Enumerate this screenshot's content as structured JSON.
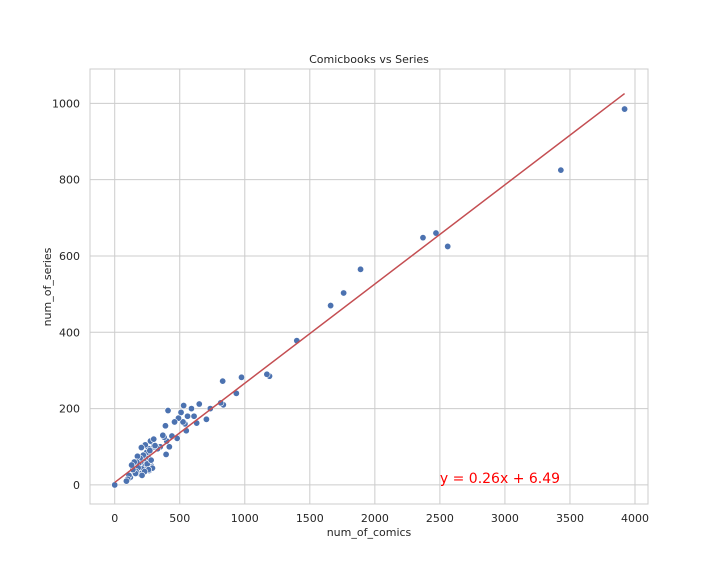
{
  "chart_data": {
    "type": "scatter",
    "title": "Comicbooks vs Series",
    "xlabel": "num_of_comics",
    "ylabel": "num_of_series",
    "xlim": [
      -190,
      4100
    ],
    "ylim": [
      -50,
      1090
    ],
    "xticks": [
      0,
      500,
      1000,
      1500,
      2000,
      2500,
      3000,
      3500,
      4000
    ],
    "yticks": [
      0,
      200,
      400,
      600,
      800,
      1000
    ],
    "xtick_labels": [
      "0",
      "500",
      "1000",
      "1500",
      "2000",
      "2500",
      "3000",
      "3500",
      "4000"
    ],
    "ytick_labels": [
      "0",
      "200",
      "400",
      "600",
      "800",
      "1000"
    ],
    "grid": true,
    "colors": {
      "points": "#4c72b0",
      "point_edge": "#ffffff",
      "line": "#c44e52",
      "annotation": "#ff0000",
      "grid": "#cccccc",
      "spine": "#cccccc"
    },
    "series": [
      {
        "x": [
          0,
          3920,
          3430,
          2560,
          2470,
          2370,
          1890,
          1760,
          1660,
          1400,
          1190,
          1170,
          975,
          935,
          835,
          830,
          815,
          735,
          705,
          650,
          630,
          610,
          590,
          560,
          550,
          540,
          530,
          525,
          510,
          490,
          480,
          460,
          440,
          420,
          410,
          400,
          395,
          390,
          380,
          370,
          350,
          330,
          300,
          290,
          280,
          275,
          270,
          265,
          260,
          255,
          250,
          245,
          240,
          235,
          230,
          225,
          220,
          215,
          210,
          205,
          200,
          195,
          190,
          185,
          180,
          175,
          170,
          165,
          160,
          150,
          140,
          130,
          120,
          110,
          100,
          90,
          300,
          290,
          310,
          270,
          250,
          280,
          260,
          230,
          210
        ],
        "y": [
          0,
          985,
          825,
          625,
          660,
          648,
          565,
          503,
          470,
          378,
          285,
          290,
          282,
          240,
          210,
          272,
          215,
          200,
          172,
          212,
          162,
          180,
          200,
          180,
          142,
          160,
          208,
          165,
          190,
          175,
          122,
          165,
          128,
          100,
          195,
          115,
          80,
          155,
          125,
          130,
          100,
          95,
          100,
          112,
          50,
          115,
          48,
          38,
          95,
          75,
          60,
          85,
          70,
          105,
          50,
          62,
          78,
          55,
          42,
          98,
          60,
          70,
          30,
          56,
          45,
          75,
          60,
          35,
          30,
          60,
          40,
          52,
          20,
          25,
          15,
          10,
          120,
          44,
          103,
          90,
          55,
          65,
          40,
          35,
          25
        ]
      }
    ],
    "fit_line": {
      "slope": 0.26,
      "intercept": 6.49,
      "x_range": [
        0,
        3920
      ]
    },
    "annotation": {
      "text": "y = 0.26x + 6.49",
      "x": 2500,
      "y": 5
    }
  }
}
